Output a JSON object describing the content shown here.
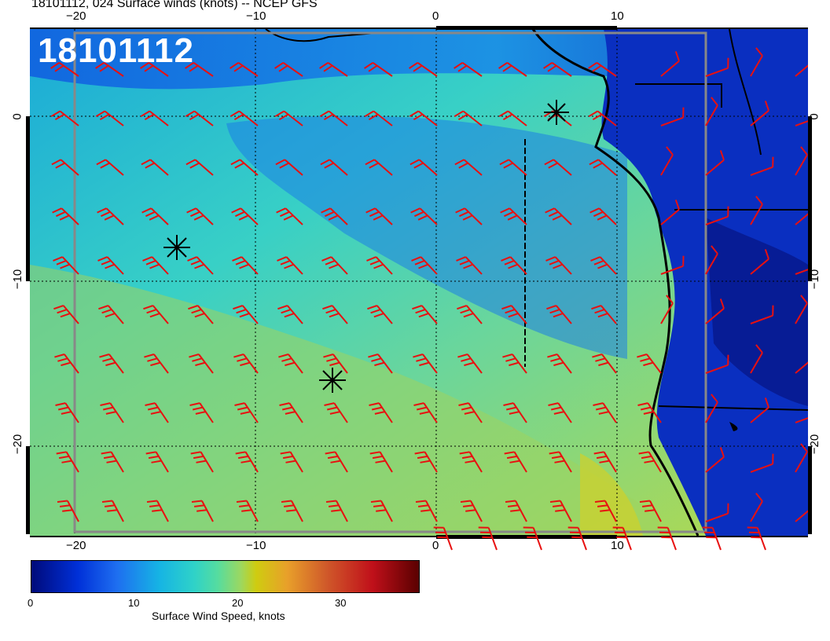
{
  "title": "18101112, 024 Surface winds (knots) -- NCEP GFS",
  "stamp": "18101112",
  "map": {
    "x_ticks_top": [
      "−20",
      "−10",
      "0",
      "10"
    ],
    "x_ticks_bottom": [
      "−20",
      "−10",
      "0",
      "10"
    ],
    "y_ticks_left": [
      "0",
      "−10",
      "−20"
    ],
    "y_ticks_right": [
      "0",
      "−10",
      "−20"
    ],
    "barb_color": "#e81010",
    "markers": [
      "storm-center-1",
      "storm-center-2",
      "storm-center-3"
    ]
  },
  "colorbar": {
    "label": "Surface Wind Speed, knots",
    "ticks": [
      "0",
      "10",
      "20",
      "30"
    ],
    "colors": [
      "#000a7a",
      "#1e6ef0",
      "#16b4e4",
      "#2fd2c8",
      "#9cd860",
      "#cfcc10",
      "#d05a2a",
      "#5a0000"
    ]
  }
}
